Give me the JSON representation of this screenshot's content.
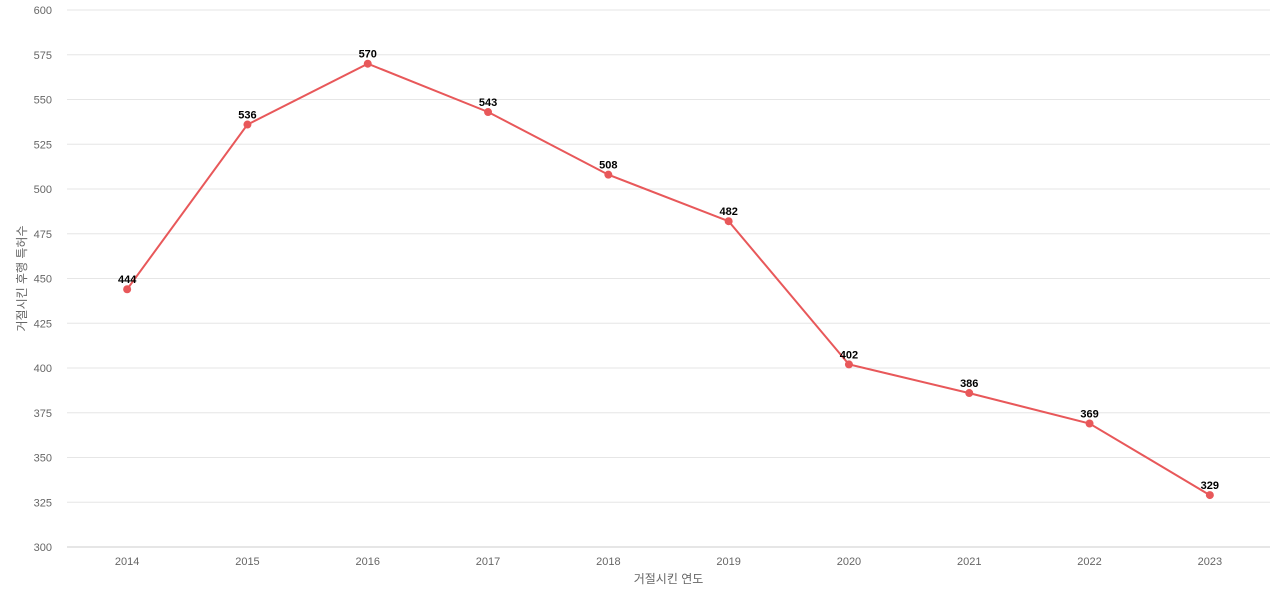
{
  "chart_data": {
    "type": "line",
    "xlabel": "거절시킨 연도",
    "ylabel": "거절시킨 후행 특허수",
    "ylim": [
      300,
      600
    ],
    "yticks": [
      300,
      325,
      350,
      375,
      400,
      425,
      450,
      475,
      500,
      525,
      550,
      575,
      600
    ],
    "categories": [
      "2014",
      "2015",
      "2016",
      "2017",
      "2018",
      "2019",
      "2020",
      "2021",
      "2022",
      "2023"
    ],
    "series": [
      {
        "values": [
          444,
          536,
          570,
          543,
          508,
          482,
          402,
          386,
          369,
          329
        ],
        "color": "#e8585a"
      }
    ],
    "grid": true,
    "legend": "none"
  }
}
